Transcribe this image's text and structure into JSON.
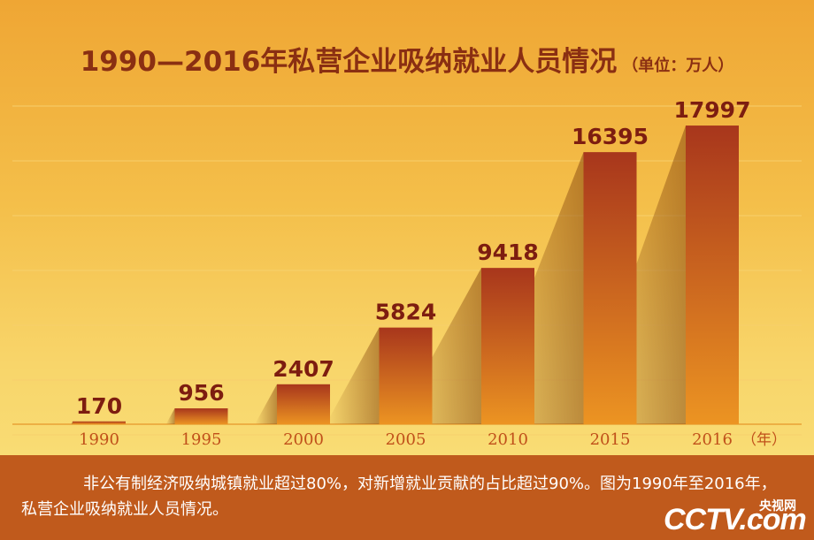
{
  "title": "1990—2016年私营企业吸纳就业人员情况",
  "unit_label": "（单位：万人）",
  "caption": "非公有制经济吸纳城镇就业超过80%，对新增就业贡献的占比超过90%。图为1990年至2016年，私营企业吸纳就业人员情况。",
  "logo": {
    "text": "CCTV.com",
    "cn": "央视网"
  },
  "colors": {
    "bar_top": "#a8361c",
    "bar_bottom": "#ec9422",
    "value_text": "#7d1d10",
    "axis_text": "#c0501a",
    "footer_bg": "#c05a1c"
  },
  "chart_data": {
    "type": "bar",
    "categories": [
      "1990",
      "1995",
      "2000",
      "2005",
      "2010",
      "2015",
      "2016"
    ],
    "values": [
      170,
      956,
      2407,
      5824,
      9418,
      16395,
      17997
    ],
    "title": "1990—2016年私营企业吸纳就业人员情况",
    "xlabel": "（年）",
    "ylabel": "",
    "grid": true,
    "show_data_labels": true
  }
}
